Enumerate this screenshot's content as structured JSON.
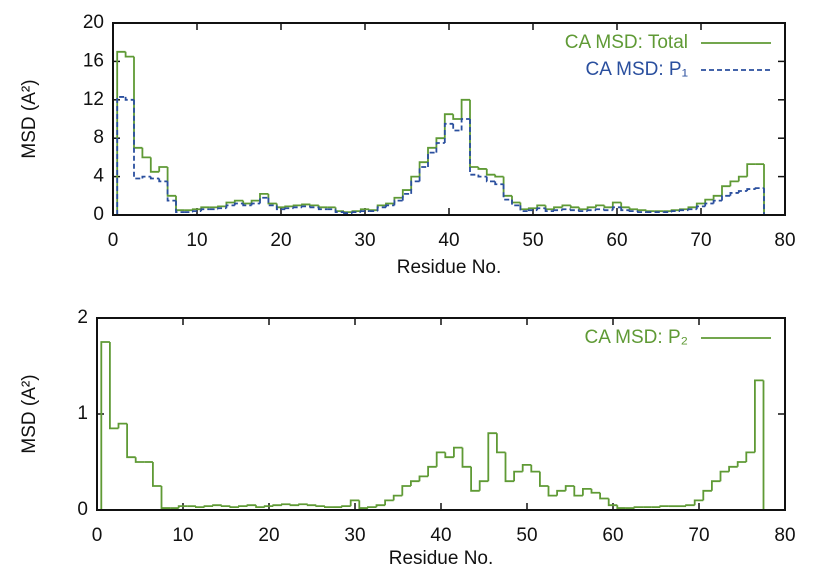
{
  "chart_data": [
    {
      "type": "step",
      "x_label": "Residue No.",
      "y_label": "MSD (A²)",
      "x": [
        1,
        2,
        3,
        4,
        5,
        6,
        7,
        8,
        9,
        10,
        11,
        12,
        13,
        14,
        15,
        16,
        17,
        18,
        19,
        20,
        21,
        22,
        23,
        24,
        25,
        26,
        27,
        28,
        29,
        30,
        31,
        32,
        33,
        34,
        35,
        36,
        37,
        38,
        39,
        40,
        41,
        42,
        43,
        44,
        45,
        46,
        47,
        48,
        49,
        50,
        51,
        52,
        53,
        54,
        55,
        56,
        57,
        58,
        59,
        60,
        61,
        62,
        63,
        64,
        65,
        66,
        67,
        68,
        69,
        70,
        71,
        72,
        73,
        74,
        75,
        76,
        77
      ],
      "xlim": [
        0,
        80
      ],
      "xticks": [
        0,
        10,
        20,
        30,
        40,
        50,
        60,
        70,
        80
      ],
      "ylim": [
        0,
        20
      ],
      "yticks": [
        0,
        4,
        8,
        12,
        16,
        20
      ],
      "series": [
        {
          "name": "CA MSD: Total",
          "color": "#5f9a35",
          "dash": false,
          "values": [
            17,
            16.5,
            7,
            6,
            4.5,
            5,
            2,
            0.5,
            0.5,
            0.6,
            0.8,
            0.8,
            0.9,
            1.3,
            1.5,
            1.2,
            1.5,
            2.2,
            1.2,
            0.8,
            0.9,
            1,
            1.1,
            1,
            0.8,
            0.8,
            0.4,
            0.3,
            0.4,
            0.6,
            0.5,
            1,
            1.2,
            1.8,
            2.6,
            4,
            5.5,
            7,
            8,
            10.5,
            10,
            12,
            5,
            4.8,
            4.2,
            4,
            2,
            1.3,
            0.6,
            0.7,
            1,
            0.6,
            0.8,
            1,
            0.8,
            0.6,
            0.8,
            1,
            0.8,
            1.3,
            0.8,
            0.6,
            0.5,
            0.4,
            0.4,
            0.4,
            0.5,
            0.6,
            0.8,
            1.2,
            1.6,
            2,
            3,
            3.5,
            4,
            5.3,
            5.3
          ]
        },
        {
          "name": "CA MSD: P₁",
          "color": "#2a4f9e",
          "dash": true,
          "values": [
            12.3,
            12,
            3.8,
            4,
            3.8,
            3.5,
            1.5,
            0.3,
            0.3,
            0.4,
            0.6,
            0.6,
            0.7,
            1,
            1.2,
            1,
            1.2,
            1.8,
            1,
            0.6,
            0.7,
            0.8,
            0.9,
            0.8,
            0.6,
            0.6,
            0.3,
            0.2,
            0.3,
            0.4,
            0.4,
            0.8,
            1,
            1.5,
            2.2,
            3.5,
            5,
            6.5,
            7.5,
            9.5,
            8.8,
            10,
            4.2,
            4,
            3.5,
            3.2,
            1.6,
            1,
            0.4,
            0.5,
            0.7,
            0.4,
            0.5,
            0.6,
            0.5,
            0.4,
            0.5,
            0.6,
            0.5,
            0.8,
            0.5,
            0.4,
            0.3,
            0.3,
            0.3,
            0.3,
            0.4,
            0.5,
            0.6,
            0.9,
            1.2,
            1.5,
            2,
            2.3,
            2.5,
            2.7,
            2.8
          ]
        }
      ]
    },
    {
      "type": "step",
      "x_label": "Residue No.",
      "y_label": "MSD (A²)",
      "x": [
        1,
        2,
        3,
        4,
        5,
        6,
        7,
        8,
        9,
        10,
        11,
        12,
        13,
        14,
        15,
        16,
        17,
        18,
        19,
        20,
        21,
        22,
        23,
        24,
        25,
        26,
        27,
        28,
        29,
        30,
        31,
        32,
        33,
        34,
        35,
        36,
        37,
        38,
        39,
        40,
        41,
        42,
        43,
        44,
        45,
        46,
        47,
        48,
        49,
        50,
        51,
        52,
        53,
        54,
        55,
        56,
        57,
        58,
        59,
        60,
        61,
        62,
        63,
        64,
        65,
        66,
        67,
        68,
        69,
        70,
        71,
        72,
        73,
        74,
        75,
        76,
        77
      ],
      "xlim": [
        0,
        80
      ],
      "xticks": [
        0,
        10,
        20,
        30,
        40,
        50,
        60,
        70,
        80
      ],
      "ylim": [
        0,
        2
      ],
      "yticks": [
        0,
        1,
        2
      ],
      "series": [
        {
          "name": "CA MSD: P₂",
          "color": "#5f9a35",
          "dash": false,
          "values": [
            1.75,
            0.85,
            0.9,
            0.55,
            0.5,
            0.5,
            0.25,
            0.02,
            0.02,
            0.04,
            0.04,
            0.03,
            0.04,
            0.05,
            0.04,
            0.03,
            0.04,
            0.05,
            0.03,
            0.04,
            0.05,
            0.06,
            0.05,
            0.06,
            0.05,
            0.04,
            0.03,
            0.03,
            0.04,
            0.1,
            0.02,
            0.03,
            0.05,
            0.1,
            0.15,
            0.25,
            0.3,
            0.35,
            0.45,
            0.6,
            0.55,
            0.65,
            0.45,
            0.2,
            0.3,
            0.8,
            0.6,
            0.3,
            0.4,
            0.47,
            0.4,
            0.25,
            0.15,
            0.2,
            0.25,
            0.15,
            0.22,
            0.18,
            0.12,
            0.05,
            0.02,
            0.02,
            0.03,
            0.03,
            0.03,
            0.04,
            0.04,
            0.04,
            0.05,
            0.1,
            0.2,
            0.3,
            0.4,
            0.45,
            0.5,
            0.6,
            1.35
          ]
        }
      ]
    }
  ]
}
